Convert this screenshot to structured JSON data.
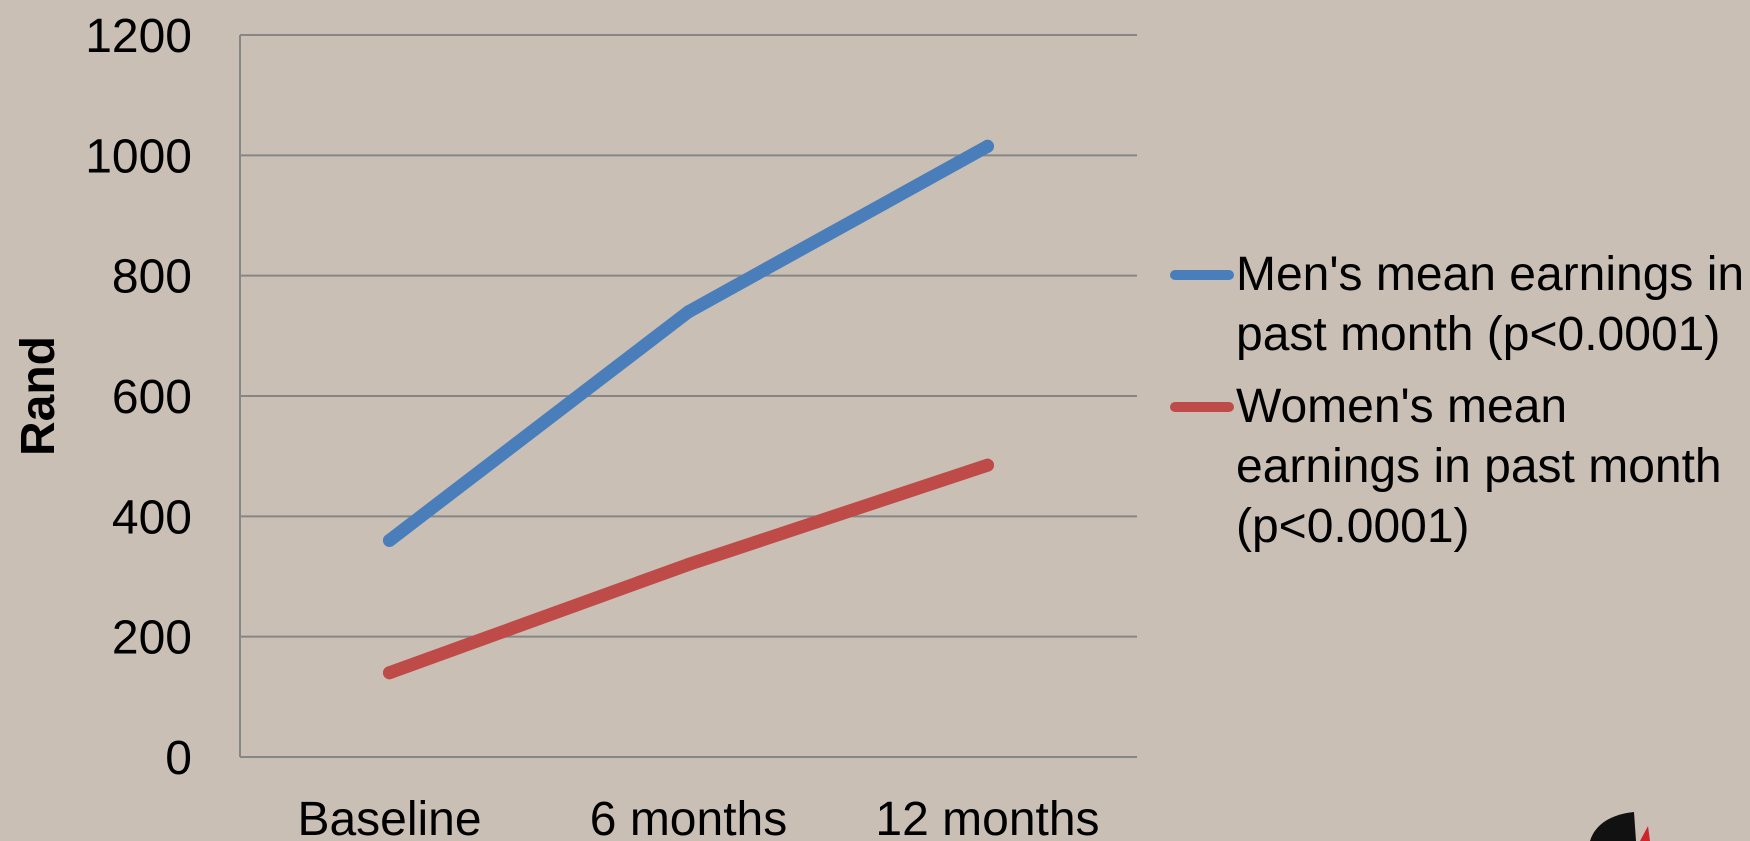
{
  "chart_data": {
    "type": "line",
    "title": "",
    "xlabel": "",
    "ylabel": "Rand",
    "categories": [
      "Baseline",
      "6 months",
      "12 months"
    ],
    "ylim": [
      0,
      1200
    ],
    "yticks": [
      "0",
      "200",
      "400",
      "600",
      "800",
      "1000",
      "1200"
    ],
    "grid": true,
    "legend_position": "right",
    "series": [
      {
        "name": "Men's mean earnings in past month (p<0.0001)",
        "values": [
          360,
          740,
          1015
        ],
        "color": "#4a7ebb"
      },
      {
        "name": "Women's mean earnings in past month (p<0.0001)",
        "values": [
          140,
          320,
          485
        ],
        "color": "#be4b48"
      }
    ]
  },
  "logo": {
    "icon": "logo-mark-icon",
    "colors": [
      "#111111",
      "#d2232a"
    ]
  }
}
